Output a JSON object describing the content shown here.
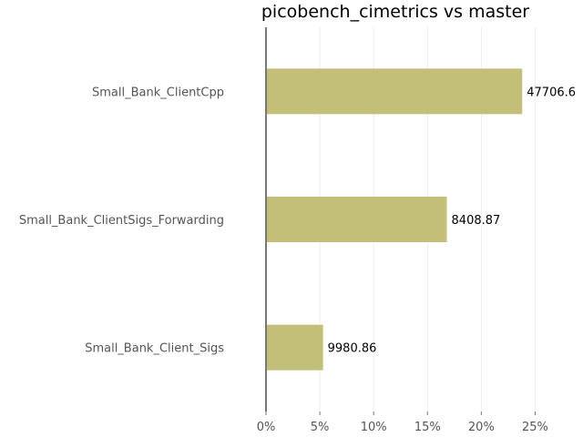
{
  "chart_data": {
    "type": "bar",
    "orientation": "horizontal",
    "title": "picobench_cimetrics vs master",
    "categories": [
      "Small_Bank_ClientCpp",
      "Small_Bank_ClientSigs_Forwarding",
      "Small_Bank_Client_Sigs"
    ],
    "values": [
      23.8,
      16.8,
      5.3
    ],
    "value_unit": "%",
    "data_labels": [
      "47706.6",
      "8408.87",
      "9980.86"
    ],
    "xlim": [
      0,
      28.6
    ],
    "x_ticks": [
      0,
      5,
      10,
      15,
      20,
      25
    ],
    "x_tick_labels": [
      "0%",
      "5%",
      "10%",
      "15%",
      "20%",
      "25%"
    ],
    "grid": "vertical",
    "legend": "none",
    "colors": {
      "bar": "#c4bf78"
    }
  }
}
